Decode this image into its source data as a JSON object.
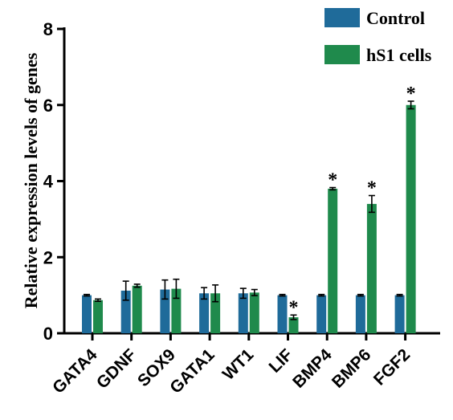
{
  "colors": {
    "control": "#1f6b9a",
    "treated": "#1f8a4c"
  },
  "chart_data": {
    "type": "bar",
    "title": "",
    "xlabel": "",
    "ylabel": "Relative expression levels of genes",
    "ylim": [
      0,
      8
    ],
    "yticks": [
      0,
      2,
      4,
      6,
      8
    ],
    "grid": false,
    "legend_position": "top-right",
    "categories": [
      "GATA4",
      "GDNF",
      "SOX9",
      "GATA1",
      "WT1",
      "LIF",
      "BMP4",
      "BMP6",
      "FGF2"
    ],
    "series": [
      {
        "name": "Control",
        "color": "#1f6b9a",
        "values": [
          1.0,
          1.12,
          1.15,
          1.05,
          1.05,
          1.0,
          1.0,
          1.0,
          1.0
        ],
        "errors": [
          0.02,
          0.25,
          0.25,
          0.15,
          0.13,
          0.02,
          0.02,
          0.02,
          0.02
        ]
      },
      {
        "name": "hS1 cells",
        "color": "#1f8a4c",
        "values": [
          0.87,
          1.25,
          1.17,
          1.05,
          1.07,
          0.42,
          3.8,
          3.4,
          6.0
        ],
        "errors": [
          0.03,
          0.04,
          0.25,
          0.22,
          0.08,
          0.06,
          0.03,
          0.22,
          0.1
        ]
      }
    ],
    "significance": [
      {
        "category": "LIF",
        "label": "*"
      },
      {
        "category": "BMP4",
        "label": "*"
      },
      {
        "category": "BMP6",
        "label": "*"
      },
      {
        "category": "FGF2",
        "label": "*"
      }
    ]
  }
}
